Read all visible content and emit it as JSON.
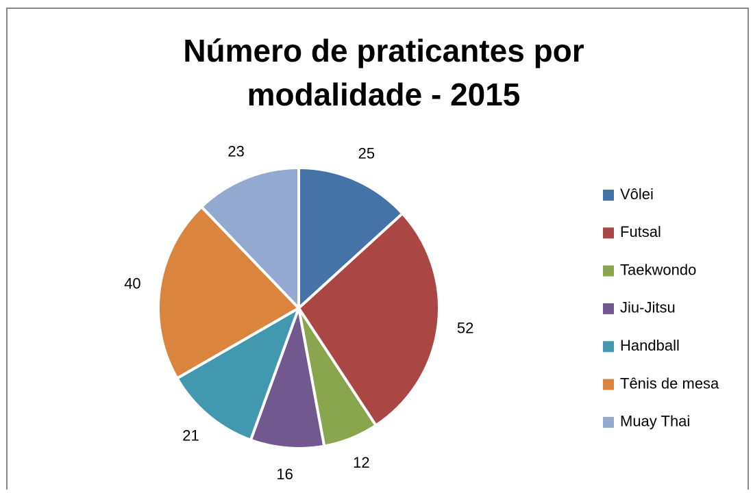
{
  "chart_data": {
    "type": "pie",
    "title": [
      "Número de praticantes por",
      "modalidade - 2015"
    ],
    "categories": [
      "Vôlei",
      "Futsal",
      "Taekwondo",
      "Jiu-Jitsu",
      "Handball",
      "Tênis de mesa",
      "Muay Thai"
    ],
    "values": [
      25,
      52,
      12,
      16,
      21,
      40,
      23
    ],
    "colors": [
      "#4572a7",
      "#aa4643",
      "#89a54e",
      "#71588f",
      "#4198af",
      "#db843d",
      "#93a9cf"
    ],
    "legend": "right"
  }
}
